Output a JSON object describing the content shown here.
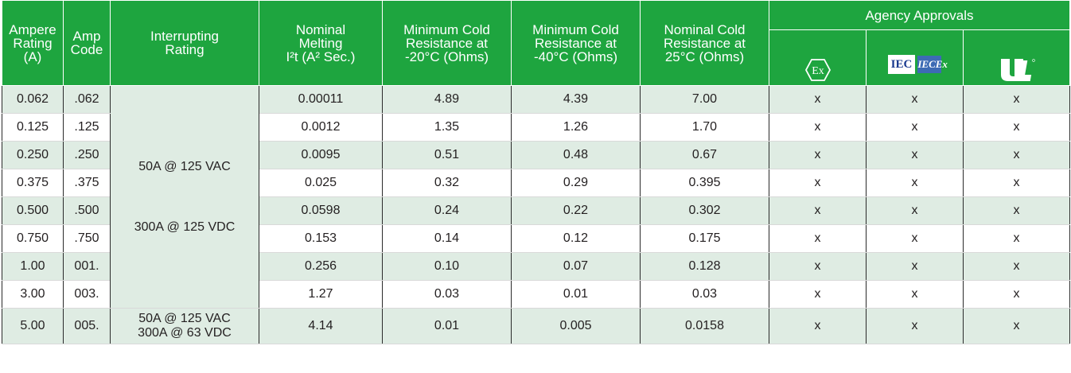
{
  "table": {
    "headers": {
      "ampere_rating": "Ampere\nRating\n(A)",
      "amp_code": "Amp\nCode",
      "interrupting_rating": "Interrupting\nRating",
      "nominal_melting": "Nominal\nMelting\nI²t (A² Sec.)",
      "min_cold_20": "Minimum Cold\nResistance at\n-20°C (Ohms)",
      "min_cold_40": "Minimum Cold\nResistance at\n-40°C (Ohms)",
      "nominal_cold_25": "Nominal Cold\nResistance at\n25°C (Ohms)",
      "agency_approvals": "Agency Approvals",
      "agency_icons": [
        "ex-atex-icon",
        "iec-iecex-icon",
        "ul-recognized-icon"
      ],
      "iec_text": "IEC",
      "iecex_text": "IECEx",
      "ex_text": "Ex"
    },
    "merged_interrupting": "50A @ 125 VAC\n\n300A @ 125 VDC",
    "rows": [
      {
        "ampere": "0.062",
        "code": ".062",
        "melting": "0.00011",
        "r20": "4.89",
        "r40": "4.39",
        "r25": "7.00",
        "a1": "x",
        "a2": "x",
        "a3": "x"
      },
      {
        "ampere": "0.125",
        "code": ".125",
        "melting": "0.0012",
        "r20": "1.35",
        "r40": "1.26",
        "r25": "1.70",
        "a1": "x",
        "a2": "x",
        "a3": "x"
      },
      {
        "ampere": "0.250",
        "code": ".250",
        "melting": "0.0095",
        "r20": "0.51",
        "r40": "0.48",
        "r25": "0.67",
        "a1": "x",
        "a2": "x",
        "a3": "x"
      },
      {
        "ampere": "0.375",
        "code": ".375",
        "melting": "0.025",
        "r20": "0.32",
        "r40": "0.29",
        "r25": "0.395",
        "a1": "x",
        "a2": "x",
        "a3": "x"
      },
      {
        "ampere": "0.500",
        "code": ".500",
        "melting": "0.0598",
        "r20": "0.24",
        "r40": "0.22",
        "r25": "0.302",
        "a1": "x",
        "a2": "x",
        "a3": "x"
      },
      {
        "ampere": "0.750",
        "code": ".750",
        "melting": "0.153",
        "r20": "0.14",
        "r40": "0.12",
        "r25": "0.175",
        "a1": "x",
        "a2": "x",
        "a3": "x"
      },
      {
        "ampere": "1.00",
        "code": "001.",
        "melting": "0.256",
        "r20": "0.10",
        "r40": "0.07",
        "r25": "0.128",
        "a1": "x",
        "a2": "x",
        "a3": "x"
      },
      {
        "ampere": "3.00",
        "code": "003.",
        "melting": "1.27",
        "r20": "0.03",
        "r40": "0.01",
        "r25": "0.03",
        "a1": "x",
        "a2": "x",
        "a3": "x"
      },
      {
        "ampere": "5.00",
        "code": "005.",
        "interrupting": "50A @ 125 VAC\n300A @ 63 VDC",
        "melting": "4.14",
        "r20": "0.01",
        "r40": "0.005",
        "r25": "0.0158",
        "a1": "x",
        "a2": "x",
        "a3": "x"
      }
    ]
  },
  "colors": {
    "header_green": "#1ea53f",
    "row_tint": "#dfece3",
    "iec_blue": "#1a3a8f",
    "iecex_blue": "#3d6bb4"
  }
}
